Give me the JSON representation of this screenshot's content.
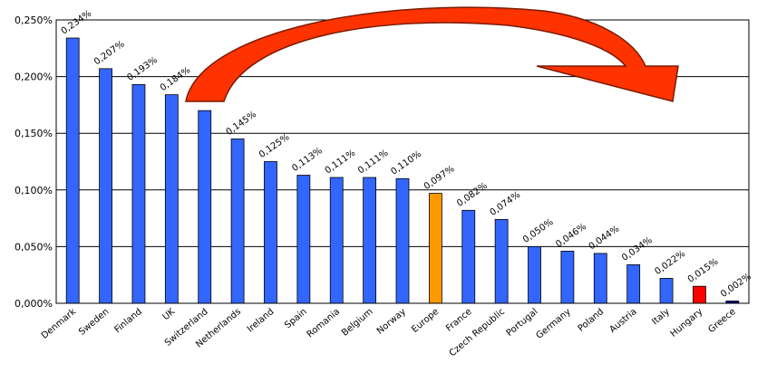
{
  "chart_data": {
    "type": "bar",
    "categories": [
      "Denmark",
      "Sweden",
      "Finland",
      "UK",
      "Switzerland",
      "Netherlands",
      "Ireland",
      "Spain",
      "Romania",
      "Belgium",
      "Norway",
      "Europe",
      "France",
      "Czech Republic",
      "Portugal",
      "Germany",
      "Poland",
      "Austria",
      "Italy",
      "Hungary",
      "Greece"
    ],
    "values": [
      0.234,
      0.207,
      0.193,
      0.184,
      0.17,
      0.145,
      0.125,
      0.113,
      0.111,
      0.111,
      0.11,
      0.097,
      0.082,
      0.074,
      0.05,
      0.046,
      0.044,
      0.034,
      0.022,
      0.015,
      0.002
    ],
    "data_labels": [
      "0,234%",
      "0,207%",
      "0,193%",
      "0,184%",
      "",
      "0,145%",
      "0,125%",
      "0,113%",
      "0,111%",
      "0,111%",
      "0,110%",
      "0,097%",
      "0,082%",
      "0,074%",
      "0,050%",
      "0,046%",
      "0,044%",
      "0,034%",
      "0,022%",
      "0,015%",
      "0,002%"
    ],
    "bar_colors": [
      "#3366ff",
      "#3366ff",
      "#3366ff",
      "#3366ff",
      "#3366ff",
      "#3366ff",
      "#3366ff",
      "#3366ff",
      "#3366ff",
      "#3366ff",
      "#3366ff",
      "#ff9900",
      "#3366ff",
      "#3366ff",
      "#3366ff",
      "#3366ff",
      "#3366ff",
      "#3366ff",
      "#3366ff",
      "#ff0000",
      "#000080"
    ],
    "y_ticks": [
      0.0,
      0.05,
      0.1,
      0.15,
      0.2,
      0.25
    ],
    "y_tick_labels": [
      "0,000%",
      "0,050%",
      "0,100%",
      "0,150%",
      "0,200%",
      "0,250%"
    ],
    "ylim": [
      0,
      0.25
    ],
    "grid": true,
    "title": "",
    "xlabel": "",
    "ylabel": "",
    "arrow_color": "#ff3300"
  }
}
